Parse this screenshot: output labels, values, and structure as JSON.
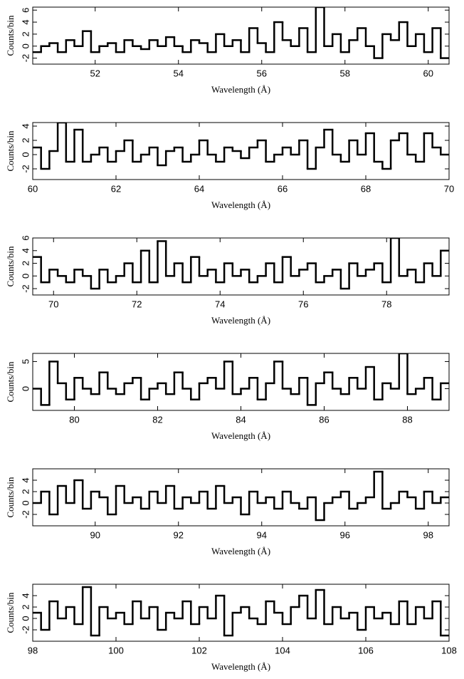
{
  "chart_data": [
    {
      "type": "line",
      "xlabel": "Wavelength (Å)",
      "ylabel": "Counts/bin",
      "color": "#000000",
      "xlim": [
        50.5,
        60.5
      ],
      "xticks": [
        52,
        54,
        56,
        58,
        60
      ],
      "ylim": [
        -3,
        6.5
      ],
      "yticks": [
        -2,
        0,
        2,
        4,
        6
      ],
      "x": [
        50.6,
        50.8,
        51.0,
        51.2,
        51.4,
        51.6,
        51.8,
        52.0,
        52.2,
        52.4,
        52.6,
        52.8,
        53.0,
        53.2,
        53.4,
        53.6,
        53.8,
        54.0,
        54.2,
        54.4,
        54.6,
        54.8,
        55.0,
        55.2,
        55.4,
        55.6,
        55.8,
        56.0,
        56.2,
        56.4,
        56.6,
        56.8,
        57.0,
        57.2,
        57.4,
        57.6,
        57.8,
        58.0,
        58.2,
        58.4,
        58.6,
        58.8,
        59.0,
        59.2,
        59.4,
        59.6,
        59.8,
        60.0,
        60.2,
        60.4
      ],
      "values": [
        -1,
        0,
        0.5,
        -1,
        1,
        0,
        2.5,
        -1,
        0,
        0.5,
        -1,
        1,
        0,
        -0.5,
        1,
        0,
        1.5,
        0,
        -1,
        1,
        0.5,
        -1,
        2,
        0,
        1,
        -1,
        3,
        0.5,
        -1,
        4,
        1,
        0,
        3,
        -1,
        6.5,
        0,
        2,
        -1,
        1,
        3,
        0,
        -2,
        2,
        1,
        4,
        0,
        2,
        -1,
        3,
        -2
      ]
    },
    {
      "type": "line",
      "xlabel": "Wavelength (Å)",
      "ylabel": "Counts/bin",
      "color": "#000000",
      "xlim": [
        60,
        70
      ],
      "xticks": [
        60,
        62,
        64,
        66,
        68,
        70
      ],
      "ylim": [
        -3.5,
        4.5
      ],
      "yticks": [
        -2,
        0,
        2,
        4
      ],
      "x": [
        60.1,
        60.3,
        60.5,
        60.7,
        60.9,
        61.1,
        61.3,
        61.5,
        61.7,
        61.9,
        62.1,
        62.3,
        62.5,
        62.7,
        62.9,
        63.1,
        63.3,
        63.5,
        63.7,
        63.9,
        64.1,
        64.3,
        64.5,
        64.7,
        64.9,
        65.1,
        65.3,
        65.5,
        65.7,
        65.9,
        66.1,
        66.3,
        66.5,
        66.7,
        66.9,
        67.1,
        67.3,
        67.5,
        67.7,
        67.9,
        68.1,
        68.3,
        68.5,
        68.7,
        68.9,
        69.1,
        69.3,
        69.5,
        69.7,
        69.9
      ],
      "values": [
        1,
        -2,
        0.5,
        4.5,
        -1,
        3.5,
        -1,
        0,
        1,
        -1,
        0.5,
        2,
        -1,
        0,
        1,
        -1.5,
        0.5,
        1,
        -1,
        0,
        2,
        0,
        -1,
        1,
        0.5,
        -0.5,
        1,
        2,
        -1,
        0,
        1,
        0,
        2,
        -2,
        1,
        3.5,
        0,
        -1,
        2,
        0,
        3,
        -1,
        -2,
        2,
        3,
        0,
        -1,
        3,
        1,
        0
      ]
    },
    {
      "type": "line",
      "xlabel": "Wavelength (Å)",
      "ylabel": "Counts/bin",
      "color": "#000000",
      "xlim": [
        69.5,
        79.5
      ],
      "xticks": [
        70,
        72,
        74,
        76,
        78
      ],
      "ylim": [
        -3,
        6
      ],
      "yticks": [
        -2,
        0,
        2,
        4,
        6
      ],
      "x": [
        69.6,
        69.8,
        70.0,
        70.2,
        70.4,
        70.6,
        70.8,
        71.0,
        71.2,
        71.4,
        71.6,
        71.8,
        72.0,
        72.2,
        72.4,
        72.6,
        72.8,
        73.0,
        73.2,
        73.4,
        73.6,
        73.8,
        74.0,
        74.2,
        74.4,
        74.6,
        74.8,
        75.0,
        75.2,
        75.4,
        75.6,
        75.8,
        76.0,
        76.2,
        76.4,
        76.6,
        76.8,
        77.0,
        77.2,
        77.4,
        77.6,
        77.8,
        78.0,
        78.2,
        78.4,
        78.6,
        78.8,
        79.0,
        79.2,
        79.4
      ],
      "values": [
        3,
        -1,
        1,
        0,
        -1,
        1,
        0,
        -2,
        1,
        -1,
        0,
        2,
        -1,
        4,
        -1,
        5.5,
        0,
        2,
        -1,
        3,
        0,
        1,
        -1,
        2,
        0,
        1,
        -1,
        0,
        2,
        -1,
        3,
        0,
        1,
        2,
        -1,
        0,
        1,
        -2,
        2,
        0,
        1,
        2,
        -1,
        6,
        0,
        1,
        -1,
        2,
        0,
        4
      ]
    },
    {
      "type": "line",
      "xlabel": "Wavelength (Å)",
      "ylabel": "Counts/bin",
      "color": "#000000",
      "xlim": [
        79,
        89
      ],
      "xticks": [
        80,
        82,
        84,
        86,
        88
      ],
      "ylim": [
        -4,
        6.5
      ],
      "yticks": [
        0,
        5
      ],
      "x": [
        79.1,
        79.3,
        79.5,
        79.7,
        79.9,
        80.1,
        80.3,
        80.5,
        80.7,
        80.9,
        81.1,
        81.3,
        81.5,
        81.7,
        81.9,
        82.1,
        82.3,
        82.5,
        82.7,
        82.9,
        83.1,
        83.3,
        83.5,
        83.7,
        83.9,
        84.1,
        84.3,
        84.5,
        84.7,
        84.9,
        85.1,
        85.3,
        85.5,
        85.7,
        85.9,
        86.1,
        86.3,
        86.5,
        86.7,
        86.9,
        87.1,
        87.3,
        87.5,
        87.7,
        87.9,
        88.1,
        88.3,
        88.5,
        88.7,
        88.9
      ],
      "values": [
        0,
        -3,
        5,
        1,
        -2,
        2,
        0,
        -1,
        3,
        0,
        -1,
        1,
        2,
        -2,
        0,
        1,
        -1,
        3,
        0,
        -2,
        1,
        2,
        0,
        5,
        -1,
        0,
        2,
        -2,
        1,
        5,
        0,
        -1,
        2,
        -3,
        1,
        3,
        0,
        -1,
        2,
        0,
        4,
        -2,
        1,
        0,
        6.5,
        -1,
        0,
        2,
        -2,
        1
      ]
    },
    {
      "type": "line",
      "xlabel": "Wavelength (Å)",
      "ylabel": "Counts/bin",
      "color": "#000000",
      "xlim": [
        88.5,
        98.5
      ],
      "xticks": [
        90,
        92,
        94,
        96,
        98
      ],
      "ylim": [
        -4,
        6
      ],
      "yticks": [
        -2,
        0,
        2,
        4
      ],
      "x": [
        88.6,
        88.8,
        89.0,
        89.2,
        89.4,
        89.6,
        89.8,
        90.0,
        90.2,
        90.4,
        90.6,
        90.8,
        91.0,
        91.2,
        91.4,
        91.6,
        91.8,
        92.0,
        92.2,
        92.4,
        92.6,
        92.8,
        93.0,
        93.2,
        93.4,
        93.6,
        93.8,
        94.0,
        94.2,
        94.4,
        94.6,
        94.8,
        95.0,
        95.2,
        95.4,
        95.6,
        95.8,
        96.0,
        96.2,
        96.4,
        96.6,
        96.8,
        97.0,
        97.2,
        97.4,
        97.6,
        97.8,
        98.0,
        98.2,
        98.4
      ],
      "values": [
        0,
        2,
        -2,
        3,
        0,
        4,
        -1,
        2,
        1,
        -2,
        3,
        0,
        1,
        -1,
        2,
        0,
        3,
        -1,
        1,
        0,
        2,
        -1,
        3,
        0,
        1,
        -2,
        2,
        0,
        1,
        -1,
        2,
        0,
        -1,
        1,
        -3,
        0,
        1,
        2,
        -1,
        0,
        1,
        5.5,
        -1,
        0,
        2,
        1,
        -1,
        2,
        0,
        1
      ]
    },
    {
      "type": "line",
      "xlabel": "Wavelength (Å)",
      "ylabel": "Counts/bin",
      "color": "#000000",
      "xlim": [
        98,
        108
      ],
      "xticks": [
        98,
        100,
        102,
        104,
        106,
        108
      ],
      "ylim": [
        -4,
        6
      ],
      "yticks": [
        -2,
        0,
        2,
        4
      ],
      "x": [
        98.1,
        98.3,
        98.5,
        98.7,
        98.9,
        99.1,
        99.3,
        99.5,
        99.7,
        99.9,
        100.1,
        100.3,
        100.5,
        100.7,
        100.9,
        101.1,
        101.3,
        101.5,
        101.7,
        101.9,
        102.1,
        102.3,
        102.5,
        102.7,
        102.9,
        103.1,
        103.3,
        103.5,
        103.7,
        103.9,
        104.1,
        104.3,
        104.5,
        104.7,
        104.9,
        105.1,
        105.3,
        105.5,
        105.7,
        105.9,
        106.1,
        106.3,
        106.5,
        106.7,
        106.9,
        107.1,
        107.3,
        107.5,
        107.7,
        107.9
      ],
      "values": [
        1,
        -2,
        3,
        0,
        2,
        -1,
        5.5,
        -3,
        2,
        0,
        1,
        -1,
        3,
        0,
        2,
        -2,
        1,
        0,
        3,
        -1,
        2,
        0,
        4,
        -3,
        1,
        2,
        0,
        -1,
        3,
        1,
        -1,
        2,
        4,
        0,
        5,
        -1,
        2,
        0,
        1,
        -2,
        2,
        0,
        1,
        -1,
        3,
        -1,
        2,
        0,
        3,
        -3
      ]
    }
  ]
}
